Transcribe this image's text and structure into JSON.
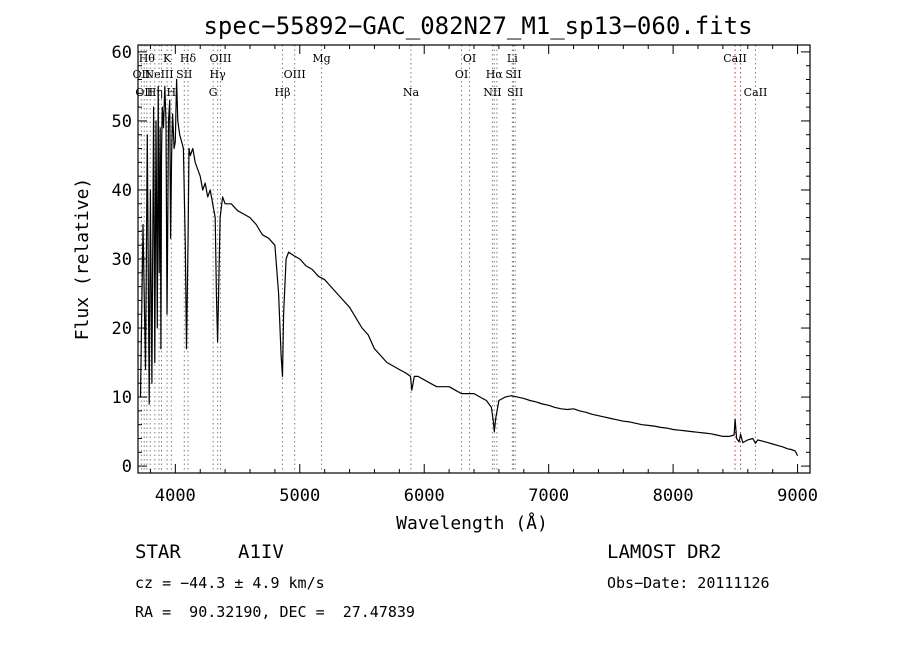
{
  "chart_data": {
    "type": "line",
    "title": "spec−55892−GAC_082N27_M1_sp13−060.fits",
    "xlabel": "Wavelength (Å)",
    "ylabel": "Flux (relative)",
    "xlim": [
      3700,
      9100
    ],
    "ylim": [
      -1,
      61
    ],
    "x_ticks": [
      4000,
      5000,
      6000,
      7000,
      8000,
      9000
    ],
    "x_tick_labels": [
      "4000",
      "5000",
      "6000",
      "7000",
      "8000",
      "9000"
    ],
    "y_ticks": [
      0,
      10,
      20,
      30,
      40,
      50,
      60
    ],
    "y_tick_labels": [
      "0",
      "10",
      "20",
      "30",
      "40",
      "50",
      "60"
    ],
    "grid": false,
    "line_color": "#000000",
    "marker_line_color": "#7f7f7f",
    "marker_line_color_alt": "#c0392b",
    "series": [
      {
        "x": [
          3720,
          3740,
          3760,
          3775,
          3790,
          3800,
          3812,
          3825,
          3835,
          3845,
          3855,
          3862,
          3870,
          3878,
          3884,
          3889,
          3895,
          3905,
          3915,
          3925,
          3933,
          3937,
          3945,
          3955,
          3962,
          3970,
          3978,
          3990,
          4000,
          4010,
          4020,
          4035,
          4050,
          4065,
          4080,
          4090,
          4102,
          4110,
          4120,
          4140,
          4160,
          4180,
          4200,
          4220,
          4240,
          4260,
          4280,
          4300,
          4320,
          4330,
          4340,
          4348,
          4360,
          4380,
          4400,
          4450,
          4500,
          4550,
          4600,
          4650,
          4700,
          4750,
          4800,
          4830,
          4850,
          4861,
          4870,
          4890,
          4910,
          4950,
          5000,
          5050,
          5100,
          5150,
          5200,
          5250,
          5300,
          5350,
          5400,
          5450,
          5500,
          5550,
          5600,
          5650,
          5700,
          5750,
          5800,
          5850,
          5890,
          5900,
          5920,
          5950,
          6000,
          6050,
          6100,
          6150,
          6200,
          6250,
          6300,
          6350,
          6400,
          6450,
          6500,
          6540,
          6555,
          6563,
          6575,
          6600,
          6650,
          6700,
          6750,
          6800,
          6850,
          6900,
          6950,
          7000,
          7050,
          7100,
          7150,
          7200,
          7250,
          7300,
          7350,
          7400,
          7450,
          7500,
          7550,
          7600,
          7650,
          7700,
          7750,
          7800,
          7850,
          7900,
          7950,
          8000,
          8050,
          8100,
          8150,
          8200,
          8250,
          8300,
          8350,
          8400,
          8450,
          8490,
          8498,
          8510,
          8530,
          8542,
          8560,
          8600,
          8640,
          8662,
          8680,
          8720,
          8760,
          8800,
          8840,
          8880,
          8920,
          8950,
          8980,
          9000
        ],
        "y": [
          10,
          35,
          14,
          48,
          9,
          40,
          12,
          52,
          15,
          50,
          20,
          55,
          28,
          49,
          17,
          45,
          52,
          49,
          55,
          50,
          22,
          30,
          50,
          53,
          33,
          45,
          51,
          46,
          47,
          56,
          50,
          48,
          47,
          46,
          32,
          17,
          32,
          46,
          45,
          46,
          44,
          43,
          42,
          40,
          41,
          39,
          40,
          38,
          36,
          25,
          18,
          25,
          36,
          39,
          38,
          38,
          37,
          36.5,
          36,
          35,
          33.5,
          33,
          32,
          25,
          16,
          13,
          22,
          30,
          31,
          30.5,
          30,
          29,
          28.5,
          27.5,
          27,
          26,
          25,
          24,
          23,
          21.5,
          20,
          19,
          17,
          16,
          15,
          14.5,
          14,
          13.5,
          13,
          11,
          13,
          13,
          12.5,
          12,
          11.5,
          11.5,
          11.5,
          11,
          10.5,
          10.5,
          10.5,
          10,
          9.5,
          8.5,
          6.5,
          5,
          7,
          9.5,
          10,
          10.2,
          10,
          9.8,
          9.5,
          9.3,
          9,
          8.8,
          8.5,
          8.3,
          8.2,
          8.3,
          8,
          7.8,
          7.5,
          7.3,
          7.1,
          6.9,
          6.7,
          6.5,
          6.4,
          6.2,
          6,
          5.9,
          5.8,
          5.6,
          5.5,
          5.3,
          5.2,
          5.1,
          5,
          4.9,
          4.8,
          4.7,
          4.5,
          4.3,
          4.3,
          4.5,
          6.8,
          4,
          3.5,
          4.6,
          3.4,
          3.8,
          4,
          3.3,
          3.8,
          3.6,
          3.4,
          3.2,
          3,
          2.8,
          2.5,
          2.4,
          2.2,
          1.5
        ]
      }
    ],
    "line_markers": [
      {
        "x": 3727,
        "label": "OII",
        "row": 2
      },
      {
        "x": 3750,
        "label": "OII",
        "row": 3
      },
      {
        "x": 3771,
        "label": "Hθ",
        "row": 1
      },
      {
        "x": 3798,
        "label": "",
        "row": 0
      },
      {
        "x": 3835,
        "label": "Hη",
        "row": 3
      },
      {
        "x": 3869,
        "label": "NeIII",
        "row": 2
      },
      {
        "x": 3889,
        "label": "",
        "row": 0
      },
      {
        "x": 3934,
        "label": "K",
        "row": 1
      },
      {
        "x": 3968,
        "label": "H",
        "row": 3
      },
      {
        "x": 4072,
        "label": "SII",
        "row": 2
      },
      {
        "x": 4102,
        "label": "Hδ",
        "row": 1
      },
      {
        "x": 4304,
        "label": "G",
        "row": 3
      },
      {
        "x": 4340,
        "label": "Hγ",
        "row": 2
      },
      {
        "x": 4363,
        "label": "OIII",
        "row": 1
      },
      {
        "x": 4861,
        "label": "Hβ",
        "row": 3
      },
      {
        "x": 4959,
        "label": "OIII",
        "row": 2
      },
      {
        "x": 5175,
        "label": "Mg",
        "row": 1
      },
      {
        "x": 5893,
        "label": "Na",
        "row": 3
      },
      {
        "x": 6300,
        "label": "OI",
        "row": 2
      },
      {
        "x": 6364,
        "label": "OI",
        "row": 1
      },
      {
        "x": 6548,
        "label": "NII",
        "row": 3
      },
      {
        "x": 6563,
        "label": "Hα",
        "row": 2
      },
      {
        "x": 6584,
        "label": "",
        "row": 0
      },
      {
        "x": 6708,
        "label": "Li",
        "row": 1
      },
      {
        "x": 6717,
        "label": "SII",
        "row": 2
      },
      {
        "x": 6731,
        "label": "SII",
        "row": 3
      },
      {
        "x": 8498,
        "label": "CaII",
        "row": 1,
        "alt": true
      },
      {
        "x": 8542,
        "label": "",
        "row": 0,
        "alt": true
      },
      {
        "x": 8662,
        "label": "CaII",
        "row": 3
      }
    ]
  },
  "info": {
    "object_class": "STAR",
    "subclass": "A1IV",
    "survey": "LAMOST DR2",
    "redshift": "cz = −44.3 ± 4.9 km/s",
    "obs_date": "Obs−Date: 20111126",
    "coords": "RA =  90.32190, DEC =  27.47839"
  }
}
